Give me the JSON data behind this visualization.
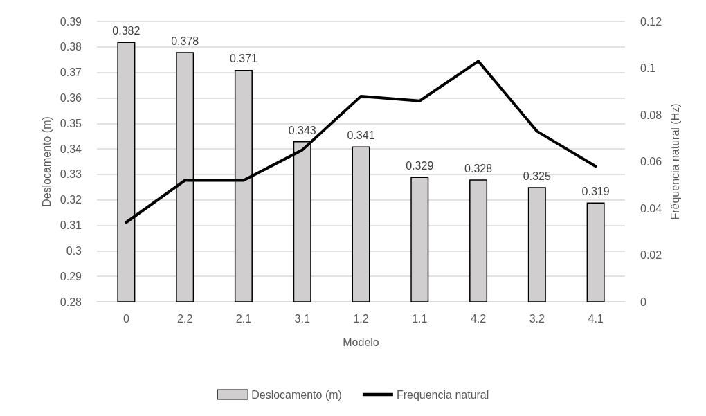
{
  "chart_data": {
    "type": "bar",
    "xlabel": "Modelo",
    "ylabel": "Deslocamento (m)",
    "y2label": "Frêquencia natural (Hz)",
    "categories": [
      "0",
      "2.2",
      "2.1",
      "3.1",
      "1.2",
      "1.1",
      "4.2",
      "3.2",
      "4.1"
    ],
    "series": [
      {
        "name": "Deslocamento (m)",
        "color": "#d0cecf",
        "values": [
          0.382,
          0.378,
          0.371,
          0.343,
          0.341,
          0.329,
          0.328,
          0.325,
          0.319
        ],
        "data_labels": true
      },
      {
        "name": "Frequencia natural",
        "type": "line",
        "axis": "y2",
        "color": "#000000",
        "values": [
          0.034,
          0.052,
          0.052,
          0.065,
          0.088,
          0.086,
          0.103,
          0.073,
          0.058
        ]
      }
    ],
    "ylim": [
      0.28,
      0.39
    ],
    "yticks": [
      0.28,
      0.29,
      0.3,
      0.31,
      0.32,
      0.33,
      0.34,
      0.35,
      0.36,
      0.37,
      0.38,
      0.39
    ],
    "y2lim": [
      0,
      0.12
    ],
    "y2ticks": [
      0,
      0.02,
      0.04,
      0.06,
      0.08,
      0.1,
      0.12
    ],
    "grid": "y",
    "legend": "bottom",
    "marker": "none",
    "line_style": "solid"
  }
}
